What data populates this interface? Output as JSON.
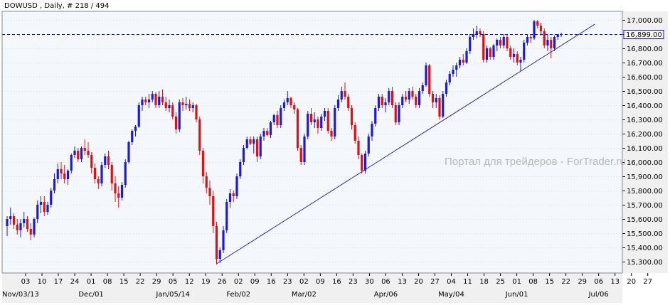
{
  "header": {
    "title": "DOWUSD , Daily, # 218 / 494"
  },
  "watermark": "Портал для трейдеров - ForTrader.ru",
  "colors": {
    "background": "#ffffff",
    "plot_background": "#f4f7fc",
    "axis_panel": "#f0f0f0",
    "bull_candle": "#1a1adc",
    "bear_candle": "#e01010",
    "trendline": "#2a2aa8",
    "current_price_line": "#101090",
    "grid": "#c8c8c8"
  },
  "chart_data": {
    "type": "candlestick",
    "title": "DOWUSD , Daily, # 218 / 494",
    "ylim": [
      15220,
      17060
    ],
    "yticks": [
      15300,
      15400,
      15500,
      15600,
      15700,
      15800,
      15900,
      16000,
      16100,
      16200,
      16300,
      16400,
      16500,
      16600,
      16700,
      16800,
      16900,
      17000
    ],
    "ytick_labels": [
      "15,300.00",
      "15,400.00",
      "15,500.00",
      "15,600.00",
      "15,700.00",
      "15,800.00",
      "15,900.00",
      "16,000.00",
      "16,100.00",
      "16,200.00",
      "16,300.00",
      "16,400.00",
      "16,500.00",
      "16,600.00",
      "16,700.00",
      "16,800.00",
      "16,900.00",
      "17,000.00"
    ],
    "current_price": 16899,
    "current_price_label": "16,899.00",
    "xtick_labels_top": [
      "03",
      "10",
      "17",
      "24",
      "01",
      "08",
      "15",
      "22",
      "29",
      "05",
      "12",
      "19",
      "26",
      "02",
      "09",
      "16",
      "23",
      "02",
      "09",
      "16",
      "23",
      "30",
      "06",
      "13",
      "20",
      "27",
      "04",
      "11",
      "18",
      "25",
      "01",
      "08",
      "15",
      "22",
      "29",
      "06",
      "13",
      "20",
      "27"
    ],
    "xtick_labels_bottom": [
      "Nov/03/13",
      "Dec/01",
      "Jan/05/14",
      "Feb/02",
      "Mar/02",
      "Apr/06",
      "May/04",
      "Jun/01",
      "Jul/06"
    ],
    "trendline": {
      "start": {
        "bar": 62,
        "price": 15285
      },
      "end": {
        "bar": 171,
        "price": 16925
      }
    },
    "series": [
      {
        "name": "DOWUSD",
        "candles": [
          [
            15550,
            15620,
            15480,
            15600
          ],
          [
            15600,
            15680,
            15560,
            15620
          ],
          [
            15620,
            15640,
            15530,
            15560
          ],
          [
            15560,
            15600,
            15490,
            15520
          ],
          [
            15520,
            15600,
            15470,
            15570
          ],
          [
            15570,
            15650,
            15540,
            15600
          ],
          [
            15600,
            15620,
            15510,
            15530
          ],
          [
            15530,
            15570,
            15450,
            15490
          ],
          [
            15490,
            15610,
            15470,
            15600
          ],
          [
            15600,
            15730,
            15570,
            15700
          ],
          [
            15700,
            15760,
            15640,
            15720
          ],
          [
            15720,
            15760,
            15620,
            15650
          ],
          [
            15650,
            15720,
            15630,
            15700
          ],
          [
            15700,
            15820,
            15680,
            15800
          ],
          [
            15800,
            15920,
            15780,
            15880
          ],
          [
            15880,
            15990,
            15850,
            15950
          ],
          [
            15950,
            16000,
            15880,
            15920
          ],
          [
            15920,
            15980,
            15850,
            15880
          ],
          [
            15880,
            15950,
            15840,
            15940
          ],
          [
            15940,
            16060,
            15920,
            16050
          ],
          [
            16050,
            16110,
            16030,
            16080
          ],
          [
            16080,
            16100,
            16000,
            16020
          ],
          [
            16020,
            16110,
            16000,
            16100
          ],
          [
            16100,
            16160,
            16050,
            16080
          ],
          [
            16080,
            16140,
            16030,
            16050
          ],
          [
            16050,
            16070,
            15920,
            15960
          ],
          [
            15960,
            15990,
            15850,
            15880
          ],
          [
            15880,
            15900,
            15810,
            15850
          ],
          [
            15850,
            16000,
            15830,
            15980
          ],
          [
            15980,
            16060,
            15960,
            16040
          ],
          [
            16040,
            16080,
            15950,
            15980
          ],
          [
            15980,
            16000,
            15800,
            15850
          ],
          [
            15850,
            15900,
            15720,
            15780
          ],
          [
            15780,
            15830,
            15680,
            15750
          ],
          [
            15750,
            15860,
            15730,
            15840
          ],
          [
            15840,
            16020,
            15820,
            16000
          ],
          [
            16000,
            16150,
            15990,
            16140
          ],
          [
            16140,
            16230,
            16120,
            16220
          ],
          [
            16220,
            16260,
            16180,
            16250
          ],
          [
            16250,
            16420,
            16240,
            16400
          ],
          [
            16400,
            16460,
            16360,
            16440
          ],
          [
            16440,
            16460,
            16400,
            16420
          ],
          [
            16420,
            16480,
            16380,
            16440
          ],
          [
            16440,
            16500,
            16420,
            16480
          ],
          [
            16480,
            16490,
            16380,
            16400
          ],
          [
            16400,
            16500,
            16380,
            16460
          ],
          [
            16460,
            16510,
            16400,
            16420
          ],
          [
            16420,
            16460,
            16360,
            16380
          ],
          [
            16380,
            16440,
            16350,
            16400
          ],
          [
            16400,
            16420,
            16300,
            16320
          ],
          [
            16320,
            16350,
            16200,
            16230
          ],
          [
            16230,
            16440,
            16210,
            16420
          ],
          [
            16420,
            16450,
            16360,
            16400
          ],
          [
            16400,
            16460,
            16370,
            16410
          ],
          [
            16410,
            16440,
            16360,
            16380
          ],
          [
            16380,
            16420,
            16350,
            16400
          ],
          [
            16400,
            16410,
            16280,
            16300
          ],
          [
            16300,
            16320,
            16050,
            16080
          ],
          [
            16080,
            16100,
            15850,
            15900
          ],
          [
            15900,
            15930,
            15780,
            15820
          ],
          [
            15820,
            15870,
            15700,
            15760
          ],
          [
            15760,
            15800,
            15500,
            15550
          ],
          [
            15550,
            15580,
            15280,
            15320
          ],
          [
            15320,
            15400,
            15290,
            15380
          ],
          [
            15380,
            15550,
            15360,
            15520
          ],
          [
            15520,
            15740,
            15500,
            15720
          ],
          [
            15720,
            15810,
            15680,
            15780
          ],
          [
            15780,
            15800,
            15720,
            15760
          ],
          [
            15760,
            15920,
            15740,
            15900
          ],
          [
            15900,
            16020,
            15880,
            16000
          ],
          [
            16000,
            16120,
            15980,
            16100
          ],
          [
            16100,
            16180,
            16090,
            16160
          ],
          [
            16160,
            16180,
            16120,
            16130
          ],
          [
            16130,
            16180,
            16060,
            16160
          ],
          [
            16160,
            16180,
            16000,
            16040
          ],
          [
            16040,
            16200,
            16020,
            16180
          ],
          [
            16180,
            16240,
            16150,
            16220
          ],
          [
            16220,
            16240,
            16180,
            16190
          ],
          [
            16190,
            16290,
            16170,
            16280
          ],
          [
            16280,
            16340,
            16260,
            16330
          ],
          [
            16330,
            16360,
            16240,
            16260
          ],
          [
            16260,
            16400,
            16240,
            16380
          ],
          [
            16380,
            16440,
            16360,
            16420
          ],
          [
            16420,
            16500,
            16400,
            16450
          ],
          [
            16450,
            16460,
            16380,
            16400
          ],
          [
            16400,
            16420,
            16340,
            16370
          ],
          [
            16370,
            16380,
            16080,
            16100
          ],
          [
            16100,
            16120,
            15980,
            16000
          ],
          [
            16000,
            16200,
            15980,
            16180
          ],
          [
            16180,
            16360,
            16160,
            16340
          ],
          [
            16340,
            16380,
            16260,
            16280
          ],
          [
            16280,
            16350,
            16240,
            16300
          ],
          [
            16300,
            16320,
            16200,
            16240
          ],
          [
            16240,
            16340,
            16220,
            16320
          ],
          [
            16320,
            16380,
            16290,
            16360
          ],
          [
            16360,
            16380,
            16200,
            16220
          ],
          [
            16220,
            16240,
            16150,
            16180
          ],
          [
            16180,
            16400,
            16160,
            16380
          ],
          [
            16380,
            16470,
            16360,
            16440
          ],
          [
            16440,
            16530,
            16420,
            16500
          ],
          [
            16500,
            16560,
            16440,
            16460
          ],
          [
            16460,
            16480,
            16360,
            16380
          ],
          [
            16380,
            16400,
            16230,
            16260
          ],
          [
            16260,
            16280,
            16130,
            16150
          ],
          [
            16150,
            16180,
            16020,
            16050
          ],
          [
            16050,
            16060,
            15920,
            15940
          ],
          [
            15940,
            16080,
            15920,
            16060
          ],
          [
            16060,
            16200,
            16040,
            16180
          ],
          [
            16180,
            16290,
            16150,
            16270
          ],
          [
            16270,
            16400,
            16250,
            16380
          ],
          [
            16380,
            16480,
            16360,
            16460
          ],
          [
            16460,
            16480,
            16380,
            16400
          ],
          [
            16400,
            16450,
            16350,
            16420
          ],
          [
            16420,
            16520,
            16400,
            16500
          ],
          [
            16500,
            16530,
            16380,
            16400
          ],
          [
            16400,
            16420,
            16260,
            16280
          ],
          [
            16280,
            16420,
            16260,
            16400
          ],
          [
            16400,
            16480,
            16380,
            16460
          ],
          [
            16460,
            16500,
            16420,
            16440
          ],
          [
            16440,
            16520,
            16410,
            16500
          ],
          [
            16500,
            16530,
            16440,
            16460
          ],
          [
            16460,
            16480,
            16380,
            16400
          ],
          [
            16400,
            16520,
            16380,
            16500
          ],
          [
            16500,
            16560,
            16480,
            16540
          ],
          [
            16540,
            16700,
            16530,
            16680
          ],
          [
            16680,
            16690,
            16460,
            16480
          ],
          [
            16480,
            16500,
            16380,
            16420
          ],
          [
            16420,
            16480,
            16380,
            16450
          ],
          [
            16450,
            16470,
            16300,
            16320
          ],
          [
            16320,
            16500,
            16310,
            16480
          ],
          [
            16480,
            16580,
            16460,
            16560
          ],
          [
            16560,
            16640,
            16540,
            16620
          ],
          [
            16620,
            16680,
            16600,
            16650
          ],
          [
            16650,
            16700,
            16600,
            16680
          ],
          [
            16680,
            16740,
            16660,
            16720
          ],
          [
            16720,
            16760,
            16680,
            16700
          ],
          [
            16700,
            16800,
            16690,
            16780
          ],
          [
            16780,
            16900,
            16760,
            16880
          ],
          [
            16880,
            16940,
            16860,
            16900
          ],
          [
            16900,
            16960,
            16870,
            16920
          ],
          [
            16920,
            16940,
            16880,
            16900
          ],
          [
            16900,
            16920,
            16700,
            16720
          ],
          [
            16720,
            16820,
            16700,
            16800
          ],
          [
            16800,
            16810,
            16720,
            16740
          ],
          [
            16740,
            16830,
            16720,
            16820
          ],
          [
            16820,
            16870,
            16780,
            16860
          ],
          [
            16860,
            16880,
            16800,
            16820
          ],
          [
            16820,
            16900,
            16800,
            16880
          ],
          [
            16880,
            16900,
            16780,
            16800
          ],
          [
            16800,
            16820,
            16720,
            16740
          ],
          [
            16740,
            16800,
            16700,
            16760
          ],
          [
            16760,
            16780,
            16680,
            16700
          ],
          [
            16700,
            16740,
            16640,
            16720
          ],
          [
            16720,
            16860,
            16700,
            16840
          ],
          [
            16840,
            16900,
            16820,
            16880
          ],
          [
            16880,
            16900,
            16840,
            16870
          ],
          [
            16870,
            17000,
            16860,
            16990
          ],
          [
            16990,
            17000,
            16940,
            16960
          ],
          [
            16960,
            16980,
            16890,
            16920
          ],
          [
            16920,
            16940,
            16800,
            16820
          ],
          [
            16820,
            16900,
            16780,
            16860
          ],
          [
            16860,
            16880,
            16730,
            16800
          ],
          [
            16800,
            16890,
            16780,
            16880
          ],
          [
            16880,
            16900,
            16860,
            16899
          ],
          [
            16899,
            16910,
            16880,
            16899
          ]
        ]
      }
    ]
  }
}
